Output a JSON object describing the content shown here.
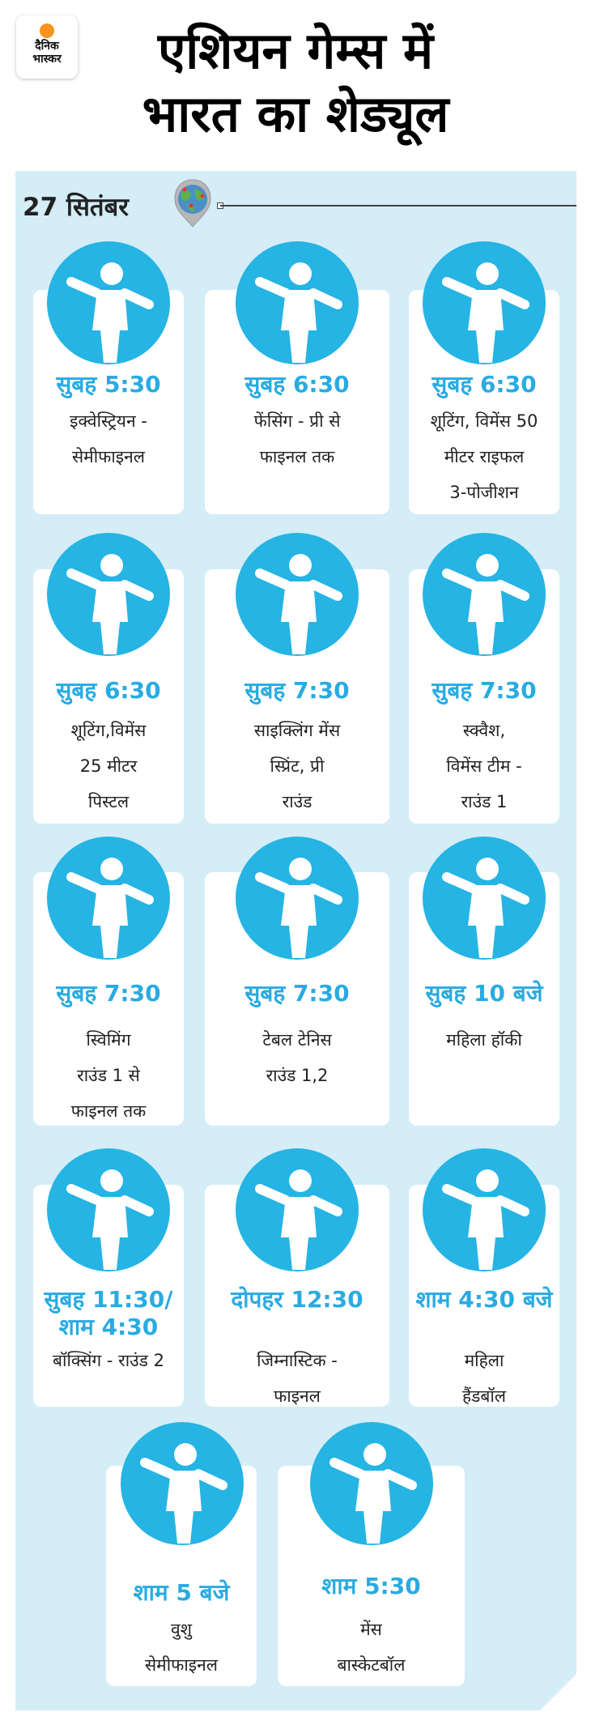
{
  "logo": {
    "line1": "दैनिक",
    "line2": "भास्कर",
    "color": "#f7931e"
  },
  "title": {
    "line1": "एशियन गेम्स में",
    "line2": "भारत का शेड्यूल"
  },
  "date": "27 सितंबर",
  "colors": {
    "accent": "#25b4e3",
    "panel": "#d4edf7"
  },
  "events": [
    {
      "icon": "equestrian-icon",
      "time": "सुबह 5:30",
      "desc": [
        "इक्वेस्ट्रियन -",
        "सेमीफाइनल"
      ]
    },
    {
      "icon": "fencing-icon",
      "time": "सुबह 6:30",
      "desc": [
        "फेंसिंग - प्री से",
        "फाइनल तक"
      ]
    },
    {
      "icon": "rifle-shooting-icon",
      "time": "सुबह 6:30",
      "desc": [
        "शूटिंग, विमेंस 50",
        "मीटर राइफल",
        "3-पोजीशन"
      ]
    },
    {
      "icon": "pistol-shooting-icon",
      "time": "सुबह 6:30",
      "desc": [
        "शूटिंग,विमेंस",
        "25 मीटर",
        "पिस्टल"
      ]
    },
    {
      "icon": "cycling-icon",
      "time": "सुबह 7:30",
      "desc": [
        "साइक्लिंग मेंस",
        "स्प्रिंट, प्री",
        "राउंड"
      ]
    },
    {
      "icon": "squash-icon",
      "time": "सुबह 7:30",
      "desc": [
        "स्क्वैश,",
        "विमेंस टीम -",
        "राउंड 1"
      ]
    },
    {
      "icon": "swimming-icon",
      "time": "सुबह 7:30",
      "desc": [
        "स्विमिंग",
        "राउंड 1 से",
        "फाइनल तक"
      ]
    },
    {
      "icon": "table-tennis-icon",
      "time": "सुबह 7:30",
      "desc": [
        "टेबल टेनिस",
        "राउंड 1,2"
      ]
    },
    {
      "icon": "hockey-icon",
      "time": "सुबह 10 बजे",
      "desc": [
        "महिला हॉकी"
      ]
    },
    {
      "icon": "boxing-icon",
      "time": "सुबह 11:30/ शाम 4:30",
      "desc": [
        "बॉक्सिंग - राउंड 2"
      ]
    },
    {
      "icon": "gymnastics-icon",
      "time": "दोपहर 12:30",
      "desc": [
        "जिम्नास्टिक -",
        "फाइनल"
      ]
    },
    {
      "icon": "handball-icon",
      "time": "शाम 4:30 बजे",
      "desc": [
        "महिला",
        "हैंडबॉल"
      ]
    },
    {
      "icon": "wushu-icon",
      "time": "शाम 5 बजे",
      "desc": [
        "वुशु",
        "सेमीफाइनल"
      ]
    },
    {
      "icon": "basketball-icon",
      "time": "शाम 5:30",
      "desc": [
        "मेंस",
        "बास्केटबॉल"
      ]
    }
  ]
}
